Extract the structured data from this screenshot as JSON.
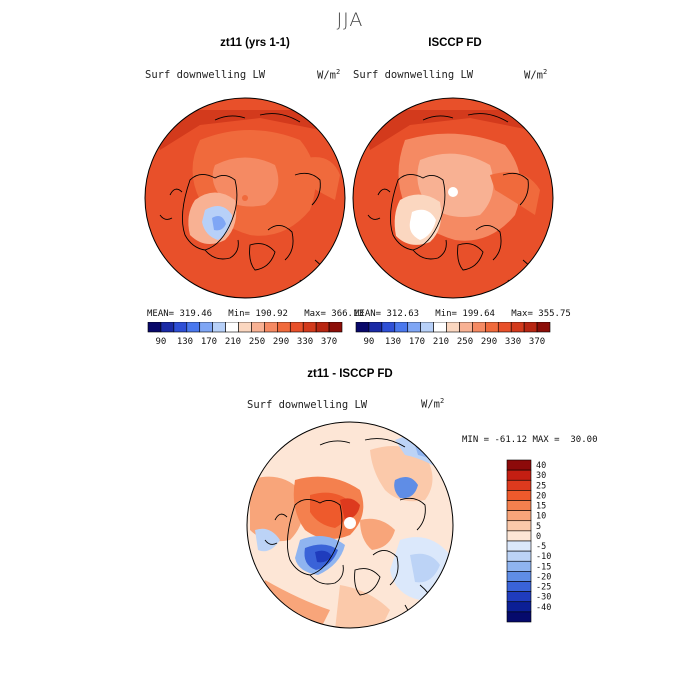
{
  "figure": {
    "season": "JJA"
  },
  "panels": [
    {
      "title": "zt11 (yrs 1-1)",
      "variable": "Surf downwelling LW",
      "units_base": "W/m",
      "units_exp": "2",
      "mean": "319.46",
      "min": "190.92",
      "max": "366.13"
    },
    {
      "title": "ISCCP FD",
      "variable": "Surf downwelling LW",
      "units_base": "W/m",
      "units_exp": "2",
      "mean": "312.63",
      "min": "199.64",
      "max": "355.75"
    },
    {
      "title": "zt11 - ISCCP FD",
      "variable": "Surf downwelling LW",
      "units_base": "W/m",
      "units_exp": "2",
      "min": "-61.12",
      "max": "30.00"
    }
  ],
  "stat_labels": {
    "mean": "MEAN=",
    "min": "Min=",
    "max": "Max=",
    "min_caps": "MIN =",
    "max_caps": "MAX ="
  },
  "colorbar_abs": {
    "ticks": [
      "90",
      "130",
      "170",
      "210",
      "250",
      "290",
      "330",
      "370"
    ],
    "colors": [
      "#08086a",
      "#1a2aa6",
      "#2e4fd6",
      "#4a78ee",
      "#7fa6f5",
      "#b7d0f8",
      "#ffffff",
      "#fbd7c0",
      "#f8b193",
      "#f58a63",
      "#f06a3c",
      "#e8502a",
      "#d33a1c",
      "#b82612",
      "#8c0e08"
    ]
  },
  "colorbar_diff": {
    "ticks": [
      "40",
      "30",
      "25",
      "20",
      "15",
      "10",
      "5",
      "0",
      "-5",
      "-10",
      "-15",
      "-20",
      "-25",
      "-30",
      "-40"
    ],
    "colors": [
      "#8c0a0a",
      "#c41e12",
      "#dd3a1e",
      "#ee5a2c",
      "#f4804e",
      "#f8a57a",
      "#fbc9aa",
      "#fde6d6",
      "#dbe8fb",
      "#bcd3f6",
      "#8fb4f0",
      "#5f8de6",
      "#3a63d8",
      "#1f3cbd",
      "#0b1f95",
      "#050a6c"
    ]
  },
  "colors": {
    "land_outline": "#000000",
    "frame": "#000000"
  }
}
